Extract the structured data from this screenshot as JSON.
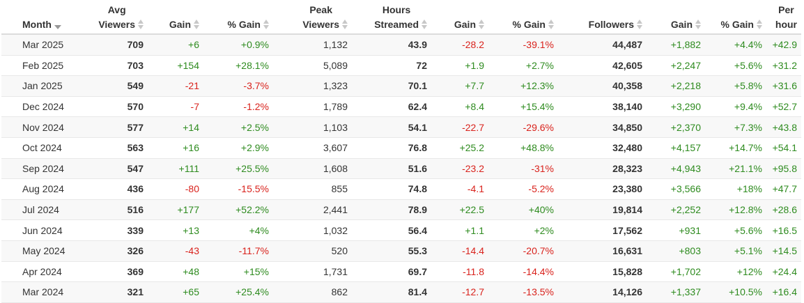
{
  "colors": {
    "positive": "#2e8b1f",
    "negative": "#d9221c",
    "text": "#333333",
    "stripe": "#f8f8f8"
  },
  "headers": {
    "month": "Month",
    "avg_viewers": [
      "Avg",
      "Viewers"
    ],
    "gain1": "Gain",
    "pct_gain1": "% Gain",
    "peak_viewers": [
      "Peak",
      "Viewers"
    ],
    "hours_streamed": [
      "Hours",
      "Streamed"
    ],
    "gain2": "Gain",
    "pct_gain2": "% Gain",
    "followers": "Followers",
    "gain3": "Gain",
    "pct_gain3": "% Gain",
    "per_hour": [
      "Per",
      "hour"
    ]
  },
  "rows": [
    {
      "month": "Mar 2025",
      "avg": "709",
      "g1": "+6",
      "pg1": "+0.9%",
      "peak": "1,132",
      "hours": "43.9",
      "g2": "-28.2",
      "pg2": "-39.1%",
      "followers": "44,487",
      "g3": "+1,882",
      "pg3": "+4.4%",
      "ph": "+42.9"
    },
    {
      "month": "Feb 2025",
      "avg": "703",
      "g1": "+154",
      "pg1": "+28.1%",
      "peak": "5,089",
      "hours": "72",
      "g2": "+1.9",
      "pg2": "+2.7%",
      "followers": "42,605",
      "g3": "+2,247",
      "pg3": "+5.6%",
      "ph": "+31.2"
    },
    {
      "month": "Jan 2025",
      "avg": "549",
      "g1": "-21",
      "pg1": "-3.7%",
      "peak": "1,323",
      "hours": "70.1",
      "g2": "+7.7",
      "pg2": "+12.3%",
      "followers": "40,358",
      "g3": "+2,218",
      "pg3": "+5.8%",
      "ph": "+31.6"
    },
    {
      "month": "Dec 2024",
      "avg": "570",
      "g1": "-7",
      "pg1": "-1.2%",
      "peak": "1,789",
      "hours": "62.4",
      "g2": "+8.4",
      "pg2": "+15.4%",
      "followers": "38,140",
      "g3": "+3,290",
      "pg3": "+9.4%",
      "ph": "+52.7"
    },
    {
      "month": "Nov 2024",
      "avg": "577",
      "g1": "+14",
      "pg1": "+2.5%",
      "peak": "1,103",
      "hours": "54.1",
      "g2": "-22.7",
      "pg2": "-29.6%",
      "followers": "34,850",
      "g3": "+2,370",
      "pg3": "+7.3%",
      "ph": "+43.8"
    },
    {
      "month": "Oct 2024",
      "avg": "563",
      "g1": "+16",
      "pg1": "+2.9%",
      "peak": "3,607",
      "hours": "76.8",
      "g2": "+25.2",
      "pg2": "+48.8%",
      "followers": "32,480",
      "g3": "+4,157",
      "pg3": "+14.7%",
      "ph": "+54.1"
    },
    {
      "month": "Sep 2024",
      "avg": "547",
      "g1": "+111",
      "pg1": "+25.5%",
      "peak": "1,608",
      "hours": "51.6",
      "g2": "-23.2",
      "pg2": "-31%",
      "followers": "28,323",
      "g3": "+4,943",
      "pg3": "+21.1%",
      "ph": "+95.8"
    },
    {
      "month": "Aug 2024",
      "avg": "436",
      "g1": "-80",
      "pg1": "-15.5%",
      "peak": "855",
      "hours": "74.8",
      "g2": "-4.1",
      "pg2": "-5.2%",
      "followers": "23,380",
      "g3": "+3,566",
      "pg3": "+18%",
      "ph": "+47.7"
    },
    {
      "month": "Jul 2024",
      "avg": "516",
      "g1": "+177",
      "pg1": "+52.2%",
      "peak": "2,441",
      "hours": "78.9",
      "g2": "+22.5",
      "pg2": "+40%",
      "followers": "19,814",
      "g3": "+2,252",
      "pg3": "+12.8%",
      "ph": "+28.6"
    },
    {
      "month": "Jun 2024",
      "avg": "339",
      "g1": "+13",
      "pg1": "+4%",
      "peak": "1,032",
      "hours": "56.4",
      "g2": "+1.1",
      "pg2": "+2%",
      "followers": "17,562",
      "g3": "+931",
      "pg3": "+5.6%",
      "ph": "+16.5"
    },
    {
      "month": "May 2024",
      "avg": "326",
      "g1": "-43",
      "pg1": "-11.7%",
      "peak": "520",
      "hours": "55.3",
      "g2": "-14.4",
      "pg2": "-20.7%",
      "followers": "16,631",
      "g3": "+803",
      "pg3": "+5.1%",
      "ph": "+14.5"
    },
    {
      "month": "Apr 2024",
      "avg": "369",
      "g1": "+48",
      "pg1": "+15%",
      "peak": "1,731",
      "hours": "69.7",
      "g2": "-11.8",
      "pg2": "-14.4%",
      "followers": "15,828",
      "g3": "+1,702",
      "pg3": "+12%",
      "ph": "+24.4"
    },
    {
      "month": "Mar 2024",
      "avg": "321",
      "g1": "+65",
      "pg1": "+25.4%",
      "peak": "862",
      "hours": "81.4",
      "g2": "-12.7",
      "pg2": "-13.5%",
      "followers": "14,126",
      "g3": "+1,337",
      "pg3": "+10.5%",
      "ph": "+16.4"
    }
  ]
}
